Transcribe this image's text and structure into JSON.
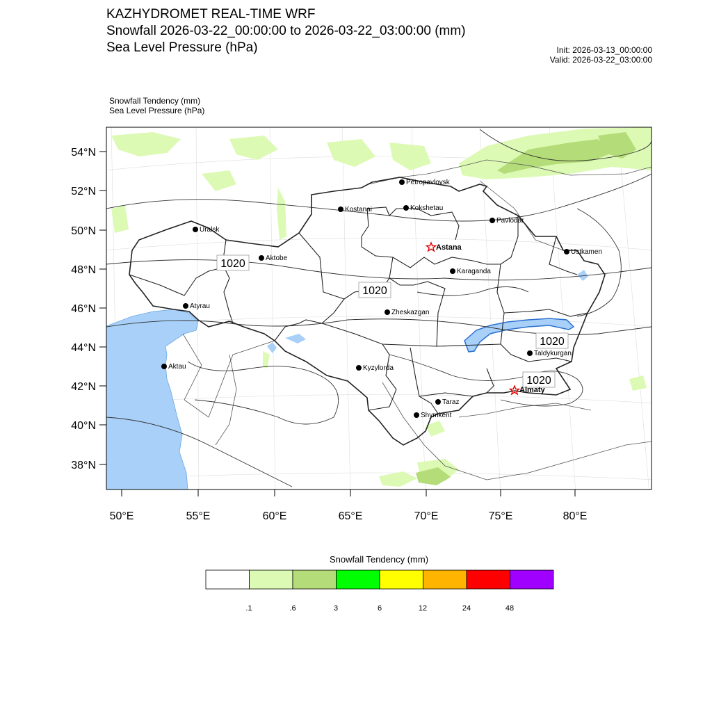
{
  "header": {
    "line1": "KAZHYDROMET REAL-TIME WRF",
    "line2": "Snowfall 2026-03-22_00:00:00 to 2026-03-22_03:00:00 (mm)",
    "line3": "Sea Level Pressure  (hPa)",
    "init": "Init: 2026-03-13_00:00:00",
    "valid": "Valid: 2026-03-22_03:00:00"
  },
  "subtitle": {
    "line1": "Snowfall Tendency   (mm)",
    "line2": "Sea Level Pressure   (hPa)"
  },
  "map": {
    "lat_ticks": [
      "54°N",
      "52°N",
      "50°N",
      "48°N",
      "46°N",
      "44°N",
      "42°N",
      "40°N",
      "38°N"
    ],
    "lon_ticks": [
      "50°E",
      "55°E",
      "60°E",
      "65°E",
      "70°E",
      "75°E",
      "80°E"
    ],
    "cities": [
      {
        "name": "Petropavlovsk",
        "capital": false
      },
      {
        "name": "Kostanai",
        "capital": false
      },
      {
        "name": "Kokshetau",
        "capital": false
      },
      {
        "name": "Pavlodar",
        "capital": false
      },
      {
        "name": "Uralsk",
        "capital": false
      },
      {
        "name": "Aktobe",
        "capital": false
      },
      {
        "name": "Astana",
        "capital": true
      },
      {
        "name": "Ustkamen",
        "capital": false
      },
      {
        "name": "Karaganda",
        "capital": false
      },
      {
        "name": "Atyrau",
        "capital": false
      },
      {
        "name": "Zheskazgan",
        "capital": false
      },
      {
        "name": "Aktau",
        "capital": false
      },
      {
        "name": "Kyzylorda",
        "capital": false
      },
      {
        "name": "Taldykurgan",
        "capital": false
      },
      {
        "name": "Almaty",
        "capital": true
      },
      {
        "name": "Taraz",
        "capital": false
      },
      {
        "name": "Shymkent",
        "capital": false
      }
    ],
    "isobar_labels": [
      "1020",
      "1020",
      "1020",
      "1020"
    ],
    "colors": {
      "water": "#a8d0f8",
      "snow_light": "#dcfab4",
      "snow_mid": "#b4dc78",
      "capital_star": "#e00000"
    }
  },
  "legend": {
    "title": "Snowfall Tendency (mm)",
    "colors": [
      "#ffffff",
      "#dcfab4",
      "#b4dc78",
      "#00ff00",
      "#ffff00",
      "#ffb400",
      "#ff0000",
      "#a000ff"
    ],
    "labels": [
      ".1",
      ".6",
      "3",
      "6",
      "12",
      "24",
      "48"
    ]
  }
}
